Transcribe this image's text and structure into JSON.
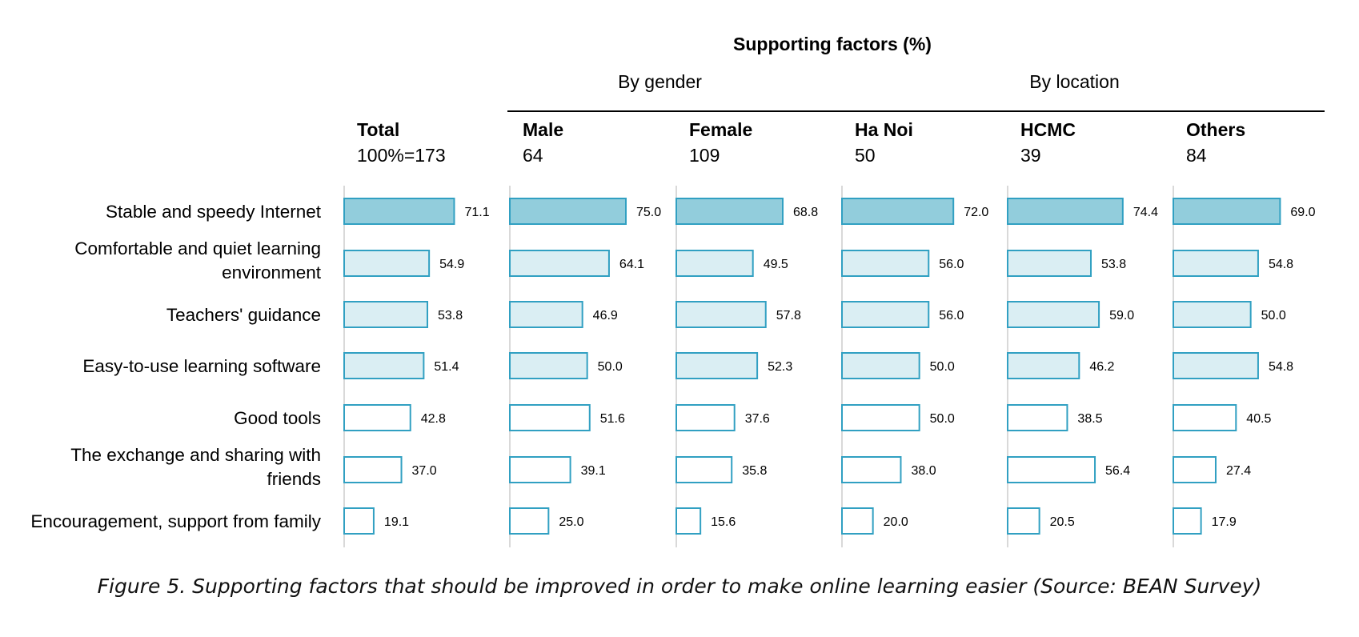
{
  "chart_data": {
    "type": "bar",
    "title": "Supporting factors (%)",
    "group_labels": [
      {
        "label": "By gender",
        "columns": [
          1,
          2
        ]
      },
      {
        "label": "By location",
        "columns": [
          3,
          4,
          5
        ]
      }
    ],
    "categories": [
      [
        "Stable and speedy Internet"
      ],
      [
        "Comfortable and quiet learning",
        "environment"
      ],
      [
        "Teachers' guidance"
      ],
      [
        "Easy-to-use learning software"
      ],
      [
        "Good tools"
      ],
      [
        "The exchange and sharing with",
        "friends"
      ],
      [
        "Encouragement, support from family"
      ]
    ],
    "series": [
      {
        "name": "Total",
        "n_label": "100%=173",
        "values": [
          71.1,
          54.9,
          53.8,
          51.4,
          42.8,
          37.0,
          19.1
        ]
      },
      {
        "name": "Male",
        "n_label": "64",
        "values": [
          75.0,
          64.1,
          46.9,
          50.0,
          51.6,
          39.1,
          25.0
        ]
      },
      {
        "name": "Female",
        "n_label": "109",
        "values": [
          68.8,
          49.5,
          57.8,
          52.3,
          37.6,
          35.8,
          15.6
        ]
      },
      {
        "name": "Ha Noi",
        "n_label": "50",
        "values": [
          72.0,
          56.0,
          56.0,
          50.0,
          50.0,
          38.0,
          20.0
        ]
      },
      {
        "name": "HCMC",
        "n_label": "39",
        "values": [
          74.4,
          53.8,
          59.0,
          46.2,
          38.5,
          56.4,
          20.5
        ]
      },
      {
        "name": "Others",
        "n_label": "84",
        "values": [
          69.0,
          54.8,
          50.0,
          54.8,
          40.5,
          27.4,
          17.9
        ]
      }
    ],
    "row_fills": [
      "#92cddc",
      "#daeef3",
      "#daeef3",
      "#daeef3",
      "#ffffff",
      "#ffffff",
      "#ffffff"
    ],
    "bar_stroke": "#31a0c2",
    "axis_color": "#d9d9d9",
    "xlim": [
      0,
      100
    ]
  },
  "caption": "Figure 5. Supporting factors that should be improved in order to make online learning easier (Source: BEAN Survey)"
}
